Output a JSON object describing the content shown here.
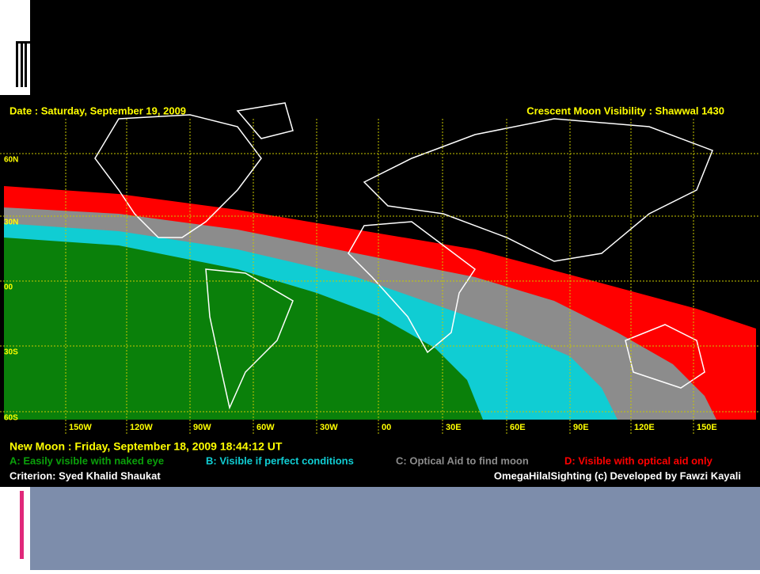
{
  "map": {
    "header": {
      "date": "Date : Saturday, September 19, 2009",
      "title": "Crescent Moon Visibility : Shawwal  1430"
    },
    "latitudes": [
      "60N",
      "30N",
      "00",
      "30S",
      "60S"
    ],
    "longitudes": [
      "150W",
      "120W",
      "90W",
      "60W",
      "30W",
      "00",
      "30E",
      "60E",
      "90E",
      "120E",
      "150E"
    ],
    "new_moon": "New Moon : Friday, September 18, 2009  18:44:12  UT",
    "legend": [
      "A: Easily visible with naked eye",
      "B: Visible if perfect conditions",
      "C: Optical Aid to find moon",
      "D: Visible with optical aid only"
    ],
    "criterion": "Criterion: Syed Khalid Shaukat",
    "credit": "OmegaHilalSighting  (c)  Developed by Fawzi Kayali"
  }
}
